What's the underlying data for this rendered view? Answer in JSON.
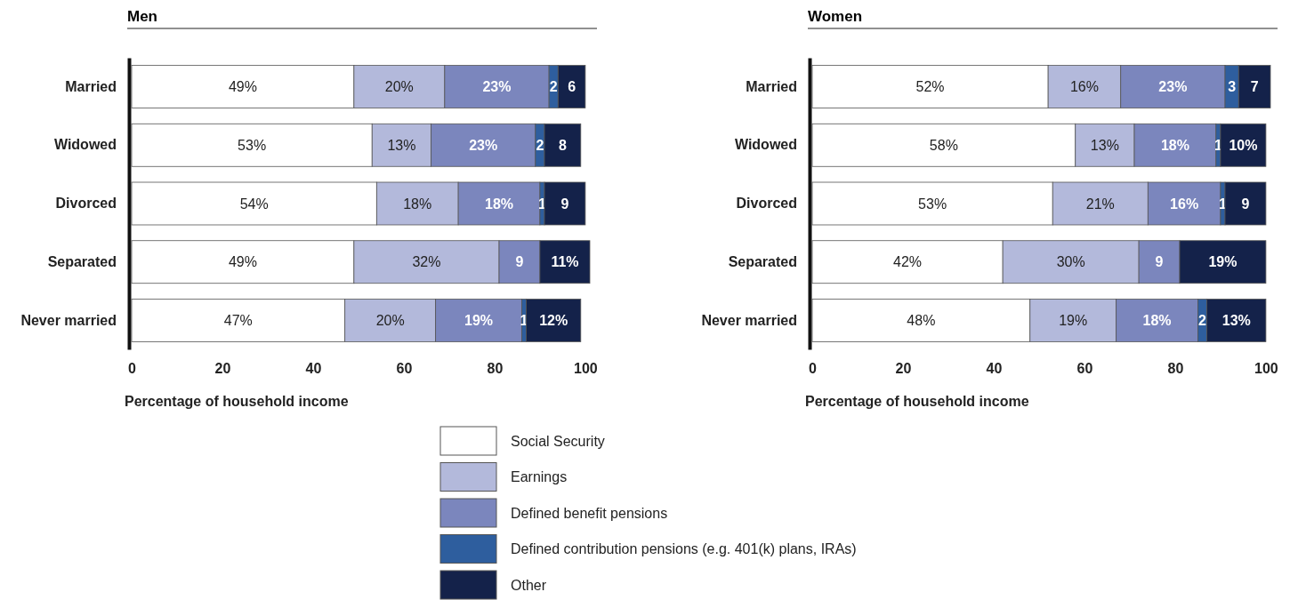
{
  "chart_data": [
    {
      "type": "bar",
      "title": "Men",
      "orientation": "horizontal",
      "stacked": true,
      "xlabel": "Percentage of household income",
      "categories": [
        "Married",
        "Widowed",
        "Divorced",
        "Separated",
        "Never married"
      ],
      "xlim": [
        0,
        101
      ],
      "xticks": [
        0,
        20,
        40,
        60,
        80,
        100
      ],
      "legend": "bottom",
      "series": [
        {
          "name": "Social Security",
          "color": "#ffffff",
          "values": [
            49,
            53,
            54,
            49,
            47
          ],
          "value_labels": [
            "49%",
            "53%",
            "54%",
            "49%",
            "47%"
          ]
        },
        {
          "name": "Earnings",
          "color": "#b3b9db",
          "values": [
            20,
            13,
            18,
            32,
            20
          ],
          "value_labels": [
            "20%",
            "13%",
            "18%",
            "32%",
            "20%"
          ]
        },
        {
          "name": "Defined benefit pensions",
          "color": "#7b86bd",
          "values": [
            23,
            23,
            18,
            9,
            19
          ],
          "value_labels": [
            "23%",
            "23%",
            "18%",
            "9",
            "19%"
          ]
        },
        {
          "name": "Defined contribution pensions (e.g. 401(k) plans, IRAs)",
          "color": "#2e5e9e",
          "values": [
            2,
            2,
            1,
            null,
            1
          ],
          "value_labels": [
            "2",
            "2",
            "1",
            null,
            "1"
          ]
        },
        {
          "name": "Other",
          "color": "#14224a",
          "values": [
            6,
            8,
            9,
            11,
            12
          ],
          "value_labels": [
            "6",
            "8",
            "9",
            "11%",
            "12%"
          ]
        }
      ]
    },
    {
      "type": "bar",
      "title": "Women",
      "orientation": "horizontal",
      "stacked": true,
      "xlabel": "Percentage of household income",
      "categories": [
        "Married",
        "Widowed",
        "Divorced",
        "Separated",
        "Never married"
      ],
      "xlim": [
        0,
        101
      ],
      "xticks": [
        0,
        20,
        40,
        60,
        80,
        100
      ],
      "legend": "bottom",
      "series": [
        {
          "name": "Social Security",
          "color": "#ffffff",
          "values": [
            52,
            58,
            53,
            42,
            48
          ],
          "value_labels": [
            "52%",
            "58%",
            "53%",
            "42%",
            "48%"
          ]
        },
        {
          "name": "Earnings",
          "color": "#b3b9db",
          "values": [
            16,
            13,
            21,
            30,
            19
          ],
          "value_labels": [
            "16%",
            "13%",
            "21%",
            "30%",
            "19%"
          ]
        },
        {
          "name": "Defined benefit pensions",
          "color": "#7b86bd",
          "values": [
            23,
            18,
            16,
            9,
            18
          ],
          "value_labels": [
            "23%",
            "18%",
            "16%",
            "9",
            "18%"
          ]
        },
        {
          "name": "Defined contribution pensions (e.g. 401(k) plans, IRAs)",
          "color": "#2e5e9e",
          "values": [
            3,
            1,
            1,
            null,
            2
          ],
          "value_labels": [
            "3",
            "1",
            "1",
            null,
            "2"
          ]
        },
        {
          "name": "Other",
          "color": "#14224a",
          "values": [
            7,
            10,
            9,
            19,
            13
          ],
          "value_labels": [
            "7",
            "10%",
            "9",
            "19%",
            "13%"
          ]
        }
      ]
    }
  ]
}
